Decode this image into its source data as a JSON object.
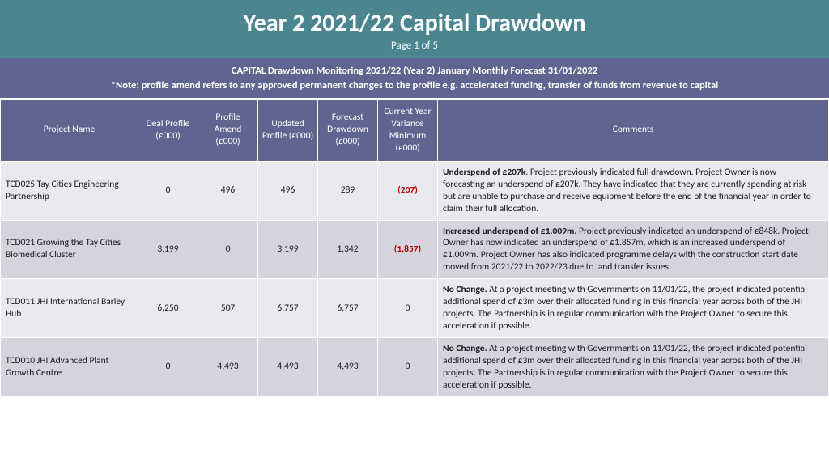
{
  "header": {
    "title": "Year 2 2021/22 Capital Drawdown",
    "subtitle": "Page 1 of 5"
  },
  "banner": {
    "line1": "CAPITAL Drawdown Monitoring 2021/22 (Year 2) January Monthly Forecast 31/01/2022",
    "line2": "*Note: profile amend refers to any approved permanent changes to the profile e.g. accelerated funding, transfer of funds from revenue to capital"
  },
  "columns": [
    "Project Name",
    "Deal Profile (£000)",
    "Profile Amend (£000)",
    "Updated Profile (£000)",
    "Forecast Drawdown (£000)",
    "Current Year Variance Minimum (£000)",
    "Comments"
  ],
  "rows": [
    {
      "name": "TCD025 Tay Cities Engineering Partnership",
      "deal": "0",
      "amend": "496",
      "updated": "496",
      "forecast": "289",
      "variance": "(207)",
      "variance_neg": true,
      "lead": "Underspend of £207k",
      "rest": ". Project previously indicated full drawdown. Project Owner is now forecasting an underspend of £207k. They have indicated that they are currently spending at risk but are unable to purchase and receive equipment before the end of the financial year in order to claim their full allocation."
    },
    {
      "name": "TCD021 Growing the Tay Cities Biomedical Cluster",
      "deal": "3,199",
      "amend": "0",
      "updated": "3,199",
      "forecast": "1,342",
      "variance": "(1,857)",
      "variance_neg": true,
      "lead": "Increased underspend of £1.009m.",
      "rest": " Project previously indicated an underspend of £848k. Project Owner has now indicated an underspend of £1.857m, which is an increased underspend of £1.009m. Project Owner has also indicated programme delays with the construction start date moved from 2021/22 to 2022/23 due to land transfer issues."
    },
    {
      "name": "TCD011 JHI International Barley Hub",
      "deal": "6,250",
      "amend": "507",
      "updated": "6,757",
      "forecast": "6,757",
      "variance": "0",
      "variance_neg": false,
      "lead": "No Change.",
      "rest": " At a project meeting with Governments on 11/01/22, the project indicated potential additional spend of £3m over their allocated funding in this financial year across both of the JHI projects. The Partnership is in regular communication with the Project Owner to secure this acceleration if possible."
    },
    {
      "name": "TCD010 JHI Advanced Plant Growth Centre",
      "deal": "0",
      "amend": "4,493",
      "updated": "4,493",
      "forecast": "4,493",
      "variance": "0",
      "variance_neg": false,
      "lead": "No Change.",
      "rest": " At a project meeting with Governments on  11/01/22, the project indicated potential additional spend of £3m over their allocated funding in this financial year across both of the JHI projects. The Partnership is in regular communication with the Project Owner to secure this acceleration if possible."
    }
  ]
}
